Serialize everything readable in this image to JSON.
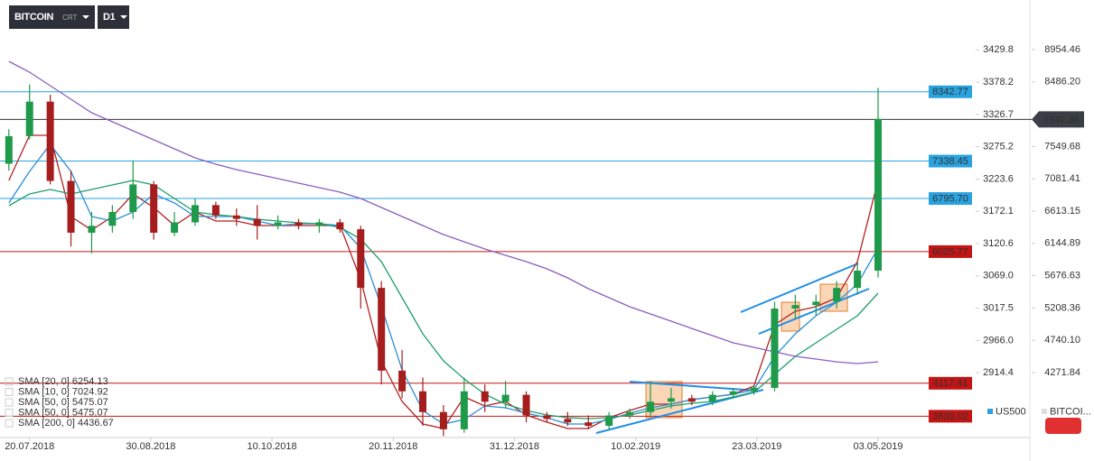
{
  "toolbar": {
    "symbol": "BITCOIN",
    "symbol_sub": "CRT",
    "timeframe": "D1"
  },
  "chart_data": {
    "type": "candlestick",
    "x": [
      "13.07.2018",
      "20.07.2018",
      "27.07.2018",
      "03.08.2018",
      "10.08.2018",
      "17.08.2018",
      "24.08.2018",
      "31.08.2018",
      "07.09.2018",
      "14.09.2018",
      "21.09.2018",
      "28.09.2018",
      "05.10.2018",
      "12.10.2018",
      "19.10.2018",
      "26.10.2018",
      "02.11.2018",
      "09.11.2018",
      "16.11.2018",
      "23.11.2018",
      "30.11.2018",
      "07.12.2018",
      "14.12.2018",
      "21.12.2018",
      "28.12.2018",
      "04.01.2019",
      "11.01.2019",
      "18.01.2019",
      "25.01.2019",
      "01.02.2019",
      "08.02.2019",
      "15.02.2019",
      "22.02.2019",
      "01.03.2019",
      "08.03.2019",
      "15.03.2019",
      "22.03.2019",
      "29.03.2019",
      "05.04.2019",
      "12.04.2019",
      "19.04.2019",
      "26.04.2019",
      "03.05.2019"
    ],
    "open": [
      7300,
      7700,
      8200,
      7050,
      6300,
      6400,
      6600,
      7000,
      6300,
      6450,
      6700,
      6550,
      6500,
      6400,
      6450,
      6400,
      6450,
      6350,
      5500,
      4300,
      4000,
      3700,
      3450,
      4000,
      3850,
      3950,
      3650,
      3600,
      3550,
      3500,
      3650,
      3700,
      3850,
      3900,
      3850,
      3950,
      4000,
      4050,
      5200,
      5250,
      5300,
      5500,
      5750
    ],
    "high": [
      7800,
      8450,
      8300,
      7200,
      6600,
      6700,
      7350,
      7050,
      6600,
      6800,
      6750,
      6650,
      6700,
      6550,
      6500,
      6500,
      6500,
      6400,
      5600,
      4600,
      4200,
      3800,
      4200,
      4100,
      4150,
      4000,
      3700,
      3700,
      3650,
      3700,
      3750,
      4150,
      4050,
      3950,
      4000,
      4050,
      4100,
      5300,
      5400,
      5400,
      5600,
      5850,
      8400
    ],
    "low": [
      7200,
      7650,
      7000,
      6100,
      6000,
      6300,
      6500,
      6200,
      6250,
      6400,
      6500,
      6400,
      6200,
      6350,
      6350,
      6300,
      6300,
      5200,
      4100,
      3900,
      3500,
      3350,
      3400,
      3700,
      3750,
      3550,
      3550,
      3500,
      3450,
      3450,
      3600,
      3650,
      3750,
      3800,
      3800,
      3900,
      3950,
      4000,
      5050,
      5100,
      5200,
      5400,
      5650
    ],
    "close": [
      7700,
      8200,
      7050,
      6300,
      6400,
      6600,
      7000,
      6300,
      6450,
      6700,
      6550,
      6500,
      6400,
      6450,
      6400,
      6450,
      6350,
      5500,
      4300,
      4000,
      3700,
      3450,
      4000,
      3850,
      3950,
      3650,
      3600,
      3550,
      3500,
      3650,
      3700,
      3850,
      3900,
      3850,
      3950,
      4000,
      4050,
      5200,
      5250,
      5300,
      5500,
      5750,
      7950
    ],
    "up_color": "#1e9a4a",
    "down_color": "#a51d1d",
    "series": [
      {
        "color": "#b22222",
        "values": [
          7058,
          7712,
          7712,
          6535,
          6338,
          6535,
          6862,
          6665,
          6404,
          6600,
          6469,
          6469,
          6404,
          6404,
          6404,
          6404,
          6404,
          5619,
          4442,
          3853,
          3526,
          3461,
          3918,
          3788,
          3853,
          3657,
          3552,
          3461,
          3461,
          3618,
          3722,
          3814,
          3814,
          3879,
          3918,
          3958,
          4075,
          4965,
          5161,
          5227,
          5357,
          5880,
          7058
        ]
      },
      {
        "color": "#2b8fd6",
        "values": [
          6731,
          7189,
          7581,
          7189,
          6535,
          6469,
          6600,
          6862,
          6731,
          6535,
          6535,
          6535,
          6469,
          6404,
          6430,
          6430,
          6404,
          6077,
          5227,
          4311,
          3722,
          3526,
          3591,
          3788,
          3762,
          3683,
          3618,
          3526,
          3526,
          3591,
          3683,
          3762,
          3814,
          3879,
          3918,
          3958,
          4023,
          4507,
          4834,
          5096,
          5292,
          5553,
          6077
        ]
      },
      {
        "color": "#1e9e6a",
        "values": [
          6691,
          6862,
          6927,
          6862,
          6927,
          6992,
          7058,
          6992,
          6796,
          6600,
          6561,
          6535,
          6495,
          6469,
          6443,
          6430,
          6378,
          6208,
          5880,
          5357,
          4834,
          4442,
          4180,
          3958,
          3814,
          3722,
          3657,
          3618,
          3605,
          3618,
          3657,
          3722,
          3788,
          3827,
          3853,
          3918,
          3984,
          4246,
          4507,
          4703,
          4900,
          5096,
          5423
        ]
      },
      {
        "color": "#8a5fbf",
        "values": [
          8784,
          8627,
          8431,
          8235,
          8039,
          7908,
          7777,
          7647,
          7516,
          7385,
          7293,
          7215,
          7149,
          7084,
          7019,
          6953,
          6888,
          6796,
          6665,
          6535,
          6404,
          6273,
          6168,
          6064,
          5972,
          5880,
          5776,
          5645,
          5488,
          5357,
          5227,
          5122,
          5017,
          4912,
          4808,
          4703,
          4638,
          4572,
          4507,
          4468,
          4428,
          4402,
          4428
        ]
      }
    ],
    "indicator_legend": [
      "SMA [20, 0] 6254.13",
      "SMA [10, 0] 7024.92",
      "SMA [50, 0] 5475.07",
      "SMA [50, 0] 5475.07",
      "SMA [200, 0] 4436.67"
    ],
    "levels": [
      {
        "value": 8342.77,
        "color": "#29a3e0"
      },
      {
        "value": 7338.45,
        "color": "#29a3e0"
      },
      {
        "value": {
          "value": 6795.7,
          "label": "6795.70"
        },
        "color": "#29a3e0"
      },
      {
        "value": 6025.77,
        "color": "#c41414"
      },
      {
        "value": 4117.41,
        "color": "#c41414"
      },
      {
        "value": 3639.02,
        "color": "#c41414"
      }
    ],
    "current_price": 7942.36,
    "xlim": [
      "10.07.2018",
      "05.06.2019"
    ],
    "xticks": [
      "20.07.2018",
      "30.08.2018",
      "10.10.2018",
      "20.11.2018",
      "31.12.2018",
      "10.02.2019",
      "23.03.2019",
      "03.05.2019"
    ],
    "ylim": [
      3330,
      9543
    ],
    "yticks": [
      8954.46,
      {
        "value": 8486.2,
        "label": "8486.20"
      },
      7549.68,
      7081.41,
      6613.15,
      6144.89,
      5676.63,
      5208.36,
      {
        "value": 4740.1,
        "label": "4740.10"
      },
      4271.84
    ],
    "y2lim": [
      2811,
      3495
    ],
    "y2ticks": [
      3429.8,
      3378.2,
      3326.7,
      3275.2,
      3223.6,
      3172.1,
      3120.6,
      {
        "value": 3069,
        "label": "3069.0"
      },
      3017.5,
      {
        "value": 2966,
        "label": "2966.0"
      },
      2914.4
    ],
    "instruments": [
      {
        "name": "US500",
        "color": "#29a3e0"
      },
      {
        "name": "BITCOI...",
        "color": "#dddddd"
      }
    ]
  }
}
